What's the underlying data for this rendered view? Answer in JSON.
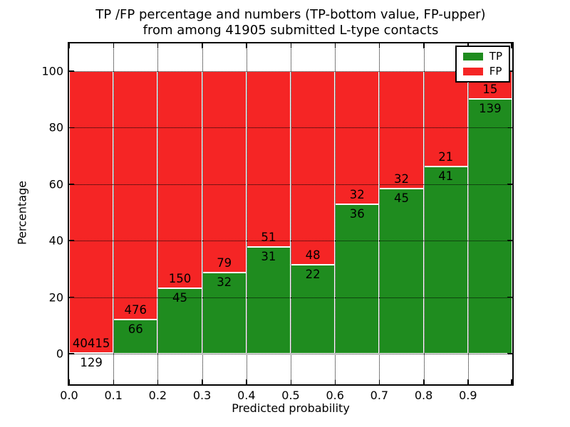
{
  "figure": {
    "title_line1": "TP /FP percentage and numbers (TP-bottom value, FP-upper)",
    "title_line2": "from among 41905 submitted L-type contacts",
    "xlabel": "Predicted probability",
    "ylabel": "Percentage"
  },
  "legend": {
    "items": [
      {
        "label": "TP",
        "color": "#1f8c1f"
      },
      {
        "label": "FP",
        "color": "#f52525"
      }
    ]
  },
  "chart_data": {
    "type": "bar",
    "stacked": true,
    "title": "TP /FP percentage and numbers (TP-bottom value, FP-upper) from among 41905 submitted L-type contacts",
    "xlabel": "Predicted probability",
    "ylabel": "Percentage",
    "total_contacts": 41905,
    "bin_starts": [
      0.0,
      0.1,
      0.2,
      0.3,
      0.4,
      0.5,
      0.6,
      0.7,
      0.8,
      0.9
    ],
    "bin_width": 0.1,
    "x_tick_labels": [
      "0.0",
      "0.1",
      "0.2",
      "0.3",
      "0.4",
      "0.5",
      "0.6",
      "0.7",
      "0.8",
      "0.9"
    ],
    "y_ticks": [
      0,
      20,
      40,
      60,
      80,
      100
    ],
    "y_tick_labels": [
      "0",
      "20",
      "40",
      "60",
      "80",
      "100"
    ],
    "xlim": [
      0.0,
      1.0
    ],
    "ylim": [
      -11,
      110
    ],
    "grid": "dotted",
    "legend_position": "upper-right",
    "series": [
      {
        "name": "TP",
        "color": "#1f8c1f",
        "counts": [
          129,
          66,
          45,
          32,
          31,
          22,
          36,
          45,
          41,
          139
        ],
        "pct": [
          0.32,
          12.18,
          23.08,
          28.83,
          37.8,
          31.43,
          52.94,
          58.44,
          66.13,
          90.26
        ]
      },
      {
        "name": "FP",
        "color": "#f52525",
        "counts": [
          40415,
          476,
          150,
          79,
          51,
          48,
          32,
          32,
          21,
          15
        ],
        "pct": [
          99.68,
          87.82,
          76.92,
          71.17,
          62.2,
          68.57,
          47.06,
          41.56,
          33.87,
          9.74
        ]
      }
    ]
  }
}
